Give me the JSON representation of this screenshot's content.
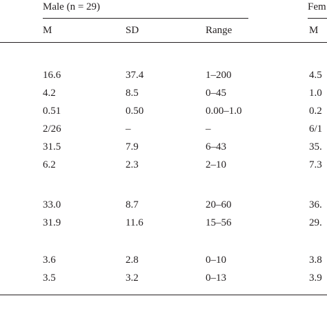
{
  "header": {
    "group_male": "Male (n = 29)",
    "group_female_partial": "Fem",
    "col_m": "M",
    "col_sd": "SD",
    "col_range": "Range",
    "col_m_female": "M"
  },
  "groups": [
    {
      "rows": [
        {
          "m": "16.6",
          "sd": "37.4",
          "range": "1–200",
          "f_m": "4.5"
        },
        {
          "m": "4.2",
          "sd": "8.5",
          "range": "0–45",
          "f_m": "1.0"
        },
        {
          "m": "0.51",
          "sd": "0.50",
          "range": "0.00–1.0",
          "f_m": "0.2"
        },
        {
          "m": "2/26",
          "sd": "–",
          "range": "–",
          "f_m": "6/1"
        },
        {
          "m": "31.5",
          "sd": "7.9",
          "range": "6–43",
          "f_m": "35."
        },
        {
          "m": "6.2",
          "sd": "2.3",
          "range": "2–10",
          "f_m": "7.3"
        }
      ]
    },
    {
      "rows": [
        {
          "m": "33.0",
          "sd": "8.7",
          "range": "20–60",
          "f_m": "36."
        },
        {
          "m": "31.9",
          "sd": "11.6",
          "range": "15–56",
          "f_m": "29."
        }
      ]
    },
    {
      "rows": [
        {
          "m": "3.6",
          "sd": "2.8",
          "range": "0–10",
          "f_m": "3.8"
        },
        {
          "m": "3.5",
          "sd": "3.2",
          "range": "0–13",
          "f_m": "3.9"
        }
      ]
    }
  ]
}
